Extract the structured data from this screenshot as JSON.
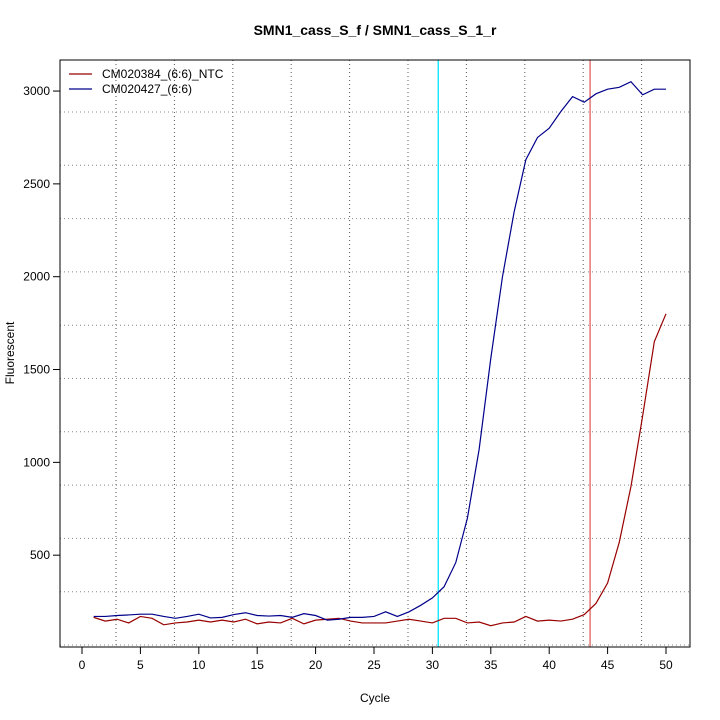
{
  "chart_data": {
    "type": "line",
    "title": "SMN1_cass_S_f / SMN1_cass_S_1_r",
    "xlabel": "Cycle",
    "ylabel": "Fluorescent",
    "xlim": [
      -1.9,
      52.2
    ],
    "ylim": [
      0,
      3150
    ],
    "x_ticks": [
      0,
      5,
      10,
      15,
      20,
      25,
      30,
      35,
      40,
      45,
      50
    ],
    "y_ticks": [
      500,
      1000,
      1500,
      2000,
      2500,
      3000
    ],
    "grid": true,
    "legend_position": "top-left",
    "threshold_lines": [
      {
        "x": 30.5,
        "color": "#00e5ff"
      },
      {
        "x": 43.5,
        "color": "#e06060"
      }
    ],
    "x": [
      1,
      2,
      3,
      4,
      5,
      6,
      7,
      8,
      9,
      10,
      11,
      12,
      13,
      14,
      15,
      16,
      17,
      18,
      19,
      20,
      21,
      22,
      23,
      24,
      25,
      26,
      27,
      28,
      29,
      30,
      31,
      32,
      33,
      34,
      35,
      36,
      37,
      38,
      39,
      40,
      41,
      42,
      43,
      44,
      45,
      46,
      47,
      48,
      49,
      50
    ],
    "series": [
      {
        "name": "CM020384_(6:6)_NTC",
        "color": "#990000",
        "values": [
          165,
          145,
          155,
          135,
          170,
          160,
          125,
          135,
          140,
          150,
          140,
          150,
          140,
          155,
          130,
          140,
          135,
          160,
          130,
          150,
          155,
          160,
          145,
          135,
          135,
          135,
          145,
          155,
          145,
          135,
          160,
          160,
          135,
          140,
          120,
          135,
          140,
          170,
          145,
          150,
          145,
          155,
          180,
          240,
          350,
          570,
          870,
          1250,
          1650,
          1800
        ]
      },
      {
        "name": "CM020427_(6:6)",
        "color": "#00008b",
        "values": [
          170,
          170,
          175,
          178,
          182,
          182,
          170,
          160,
          170,
          182,
          162,
          165,
          180,
          190,
          175,
          172,
          175,
          165,
          185,
          175,
          150,
          155,
          165,
          165,
          170,
          195,
          170,
          195,
          230,
          270,
          330,
          460,
          700,
          1070,
          1560,
          2000,
          2350,
          2630,
          2750,
          2800,
          2890,
          2970,
          2940,
          2985,
          3010,
          3020,
          3050,
          2980,
          3010,
          3010
        ]
      }
    ]
  }
}
